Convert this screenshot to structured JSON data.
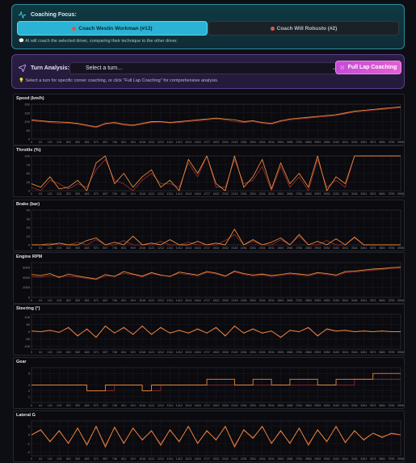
{
  "focus": {
    "title": "Coaching Focus:",
    "coach_a": "Coach Westin Workman (#13)",
    "coach_b": "Coach Will Robusto (#2)",
    "note": "AI will coach the selected driver, comparing their technique to the other driver."
  },
  "turn": {
    "label": "Turn Analysis:",
    "select_value": "Select a turn...",
    "full_lap_button": "Full Lap Coaching",
    "note": "Select a turn for specific corner coaching, or click \"Full Lap Coaching\" for comprehensive analysis."
  },
  "colors": {
    "driver_a": "#e8893a",
    "driver_b": "#9a2f2f",
    "grid": "#2a2c33"
  },
  "x_ticks": [
    "0",
    "61",
    "121",
    "210",
    "302",
    "392",
    "483",
    "571",
    "657",
    "746",
    "831",
    "919",
    "1016",
    "1121",
    "1212",
    "1311",
    "1412",
    "1513",
    "1616",
    "1717",
    "1822",
    "2032",
    "2143",
    "2261",
    "2351",
    "2431",
    "2511",
    "2601",
    "2681",
    "2781",
    "2863",
    "2953",
    "3052",
    "3152",
    "3241",
    "3341",
    "3451",
    "3571",
    "3681",
    "3783",
    "3906"
  ],
  "chart_data": [
    {
      "type": "line",
      "title": "Speed (km/h)",
      "y_ticks": [
        "200",
        "150",
        "100",
        "50",
        "0"
      ],
      "ylim": [
        0,
        200
      ],
      "series": [
        {
          "values": [
            110,
            105,
            100,
            98,
            95,
            90,
            80,
            70,
            90,
            95,
            85,
            80,
            90,
            100,
            100,
            95,
            100,
            105,
            110,
            115,
            120,
            115,
            110,
            100,
            105,
            95,
            90,
            105,
            115,
            120,
            125,
            130,
            135,
            140,
            150,
            160,
            165,
            170,
            175,
            180,
            185
          ]
        },
        {
          "values": [
            105,
            100,
            95,
            90,
            92,
            85,
            75,
            65,
            85,
            90,
            80,
            75,
            85,
            95,
            98,
            92,
            95,
            100,
            105,
            110,
            115,
            110,
            100,
            95,
            100,
            90,
            85,
            100,
            110,
            115,
            120,
            125,
            130,
            135,
            145,
            155,
            160,
            165,
            170,
            175,
            180
          ]
        }
      ]
    },
    {
      "type": "line",
      "title": "Throttle (%)",
      "y_ticks": [
        "100",
        "75",
        "50",
        "25",
        "0"
      ],
      "ylim": [
        0,
        100
      ],
      "series": [
        {
          "values": [
            20,
            10,
            40,
            5,
            10,
            30,
            0,
            80,
            100,
            20,
            50,
            10,
            40,
            60,
            10,
            30,
            0,
            90,
            50,
            100,
            20,
            0,
            100,
            10,
            40,
            90,
            5,
            80,
            20,
            50,
            10,
            100,
            0,
            40,
            20,
            100,
            100,
            100,
            100,
            100,
            100
          ]
        },
        {
          "values": [
            10,
            0,
            30,
            20,
            5,
            20,
            10,
            60,
            90,
            30,
            20,
            0,
            30,
            50,
            20,
            20,
            10,
            80,
            40,
            100,
            10,
            10,
            90,
            20,
            30,
            70,
            0,
            70,
            10,
            40,
            0,
            90,
            10,
            30,
            10,
            100,
            100,
            100,
            100,
            100,
            100
          ]
        }
      ]
    },
    {
      "type": "line",
      "title": "Brake (bar)",
      "y_ticks": [
        "40",
        "30",
        "20",
        "10",
        "0"
      ],
      "ylim": [
        0,
        40
      ],
      "series": [
        {
          "values": [
            0,
            0,
            0,
            2,
            0,
            0,
            5,
            8,
            0,
            3,
            0,
            10,
            0,
            2,
            0,
            6,
            0,
            0,
            4,
            0,
            2,
            0,
            18,
            0,
            6,
            0,
            3,
            8,
            0,
            12,
            0,
            4,
            0,
            7,
            0,
            9,
            0,
            0,
            0,
            0,
            0
          ]
        },
        {
          "values": [
            0,
            0,
            2,
            0,
            0,
            3,
            0,
            6,
            0,
            0,
            5,
            0,
            0,
            0,
            4,
            0,
            0,
            3,
            0,
            0,
            0,
            5,
            12,
            0,
            4,
            0,
            0,
            6,
            0,
            10,
            0,
            0,
            5,
            0,
            0,
            8,
            0,
            0,
            0,
            0,
            0
          ]
        }
      ]
    },
    {
      "type": "line",
      "title": "Engine RPM",
      "y_ticks": [
        "6000",
        "4000",
        "2000",
        "0"
      ],
      "ylim": [
        0,
        7000
      ],
      "series": [
        {
          "values": [
            4600,
            4400,
            4800,
            4000,
            4700,
            4300,
            4000,
            3700,
            4600,
            4200,
            5200,
            4700,
            4300,
            5000,
            4500,
            4200,
            5100,
            4800,
            4500,
            5200,
            4900,
            4300,
            5300,
            4800,
            4500,
            4700,
            4400,
            4600,
            4900,
            4700,
            4500,
            5000,
            4800,
            4500,
            5200,
            5300,
            5500,
            5700,
            5800,
            6000,
            6100
          ]
        },
        {
          "values": [
            4200,
            4100,
            4400,
            4200,
            4300,
            4100,
            3800,
            3600,
            4300,
            4300,
            4800,
            4600,
            4100,
            4800,
            4400,
            4300,
            4800,
            4600,
            4300,
            5000,
            4700,
            4200,
            5100,
            4600,
            4300,
            4500,
            4200,
            4400,
            4700,
            4500,
            4300,
            4800,
            4600,
            4300,
            5000,
            5100,
            5300,
            5500,
            5600,
            5800,
            5900
          ]
        }
      ]
    },
    {
      "type": "line",
      "title": "Steering (°)",
      "y_ticks": [
        "100",
        "50",
        "0",
        "-50",
        "-100"
      ],
      "ylim": [
        -120,
        120
      ],
      "series": [
        {
          "values": [
            5,
            0,
            10,
            -5,
            30,
            -30,
            20,
            -40,
            40,
            -10,
            30,
            -20,
            40,
            -20,
            30,
            -10,
            10,
            -10,
            20,
            -10,
            30,
            -30,
            40,
            -10,
            20,
            -10,
            5,
            -40,
            10,
            0,
            30,
            -30,
            20,
            5,
            10,
            0,
            5,
            0,
            5,
            0,
            0
          ]
        },
        {
          "values": [
            3,
            0,
            8,
            -3,
            25,
            -25,
            15,
            -35,
            35,
            -8,
            25,
            -15,
            35,
            -15,
            25,
            -8,
            8,
            -8,
            15,
            -8,
            25,
            -25,
            35,
            -8,
            15,
            -8,
            3,
            -35,
            8,
            0,
            25,
            -25,
            15,
            3,
            8,
            0,
            3,
            0,
            3,
            0,
            0
          ]
        }
      ]
    },
    {
      "type": "line",
      "title": "Gear",
      "y_ticks": [
        "5",
        "3",
        "2",
        "1"
      ],
      "ylim": [
        0,
        6
      ],
      "series": [
        {
          "values": [
            3,
            3,
            3,
            3,
            3,
            3,
            2,
            2,
            3,
            3,
            3,
            3,
            2,
            3,
            3,
            3,
            3,
            3,
            3,
            4,
            4,
            4,
            3,
            3,
            4,
            4,
            3,
            3,
            4,
            4,
            4,
            3,
            3,
            4,
            4,
            4,
            4,
            5,
            5,
            5,
            5
          ]
        },
        {
          "values": [
            3,
            3,
            3,
            3,
            3,
            3,
            2,
            2,
            2,
            3,
            3,
            3,
            2,
            2,
            3,
            3,
            3,
            3,
            3,
            3,
            3,
            3,
            3,
            3,
            3,
            3,
            3,
            3,
            3,
            3,
            3,
            3,
            3,
            3,
            3,
            4,
            4,
            4,
            4,
            4,
            4
          ]
        }
      ]
    },
    {
      "type": "line",
      "title": "Lateral G",
      "y_ticks": [
        "1",
        "0",
        "-1",
        "-2"
      ],
      "ylim": [
        -2.4,
        1.6
      ],
      "series": [
        {
          "values": [
            0,
            0.6,
            -0.8,
            0.5,
            -1,
            0.8,
            -1.2,
            1,
            -1.4,
            0.9,
            -1,
            0.8,
            -0.6,
            0.5,
            -1.2,
            0.6,
            -0.8,
            1,
            -1,
            0.5,
            -0.6,
            1,
            -1.4,
            0.6,
            -0.4,
            1,
            -1,
            0.5,
            -1,
            0.8,
            -1.2,
            0.6,
            -0.8,
            1,
            -0.9,
            0.5,
            -0.6,
            0.2,
            -0.3,
            0.2,
            0
          ]
        },
        {
          "values": [
            0,
            0.5,
            -0.7,
            0.4,
            -0.9,
            0.7,
            -1,
            0.9,
            -1.2,
            0.8,
            -0.9,
            0.7,
            -0.5,
            0.4,
            -1,
            0.5,
            -0.7,
            0.9,
            -0.9,
            0.4,
            -0.5,
            0.9,
            -1.2,
            0.5,
            -0.3,
            0.9,
            -0.9,
            0.4,
            -0.9,
            0.7,
            -1,
            0.5,
            -0.7,
            0.9,
            -0.8,
            0.4,
            -0.5,
            0.2,
            -0.2,
            0.1,
            0
          ]
        }
      ]
    }
  ]
}
